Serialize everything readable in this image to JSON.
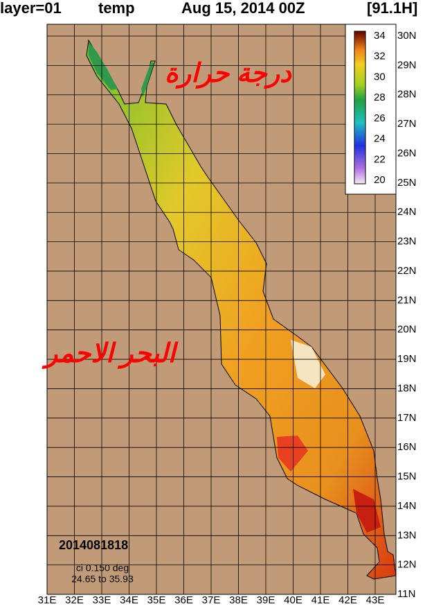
{
  "header": {
    "layer": "layer=01",
    "field": "temp",
    "date": "Aug 15, 2014 00Z",
    "forecast": "[91.1H]"
  },
  "map": {
    "lon_labels": [
      "31E",
      "32E",
      "33E",
      "34E",
      "35E",
      "36E",
      "37E",
      "38E",
      "39E",
      "40E",
      "41E",
      "42E",
      "43E"
    ],
    "lat_labels": [
      "30N",
      "29N",
      "28N",
      "27N",
      "26N",
      "25N",
      "24N",
      "23N",
      "22N",
      "21N",
      "20N",
      "19N",
      "18N",
      "17N",
      "16N",
      "15N",
      "14N",
      "13N",
      "12N",
      "11N"
    ]
  },
  "colorbar": {
    "ticks": [
      34,
      32,
      30,
      28,
      26,
      24,
      22,
      20
    ]
  },
  "annotations": {
    "title_ar": "درجة حرارة",
    "sea_ar": "البحر الاحمر"
  },
  "stamp": {
    "run": "2014081818",
    "interval": "ci 0.150 deg",
    "range": "24.65 to 35.93"
  }
}
